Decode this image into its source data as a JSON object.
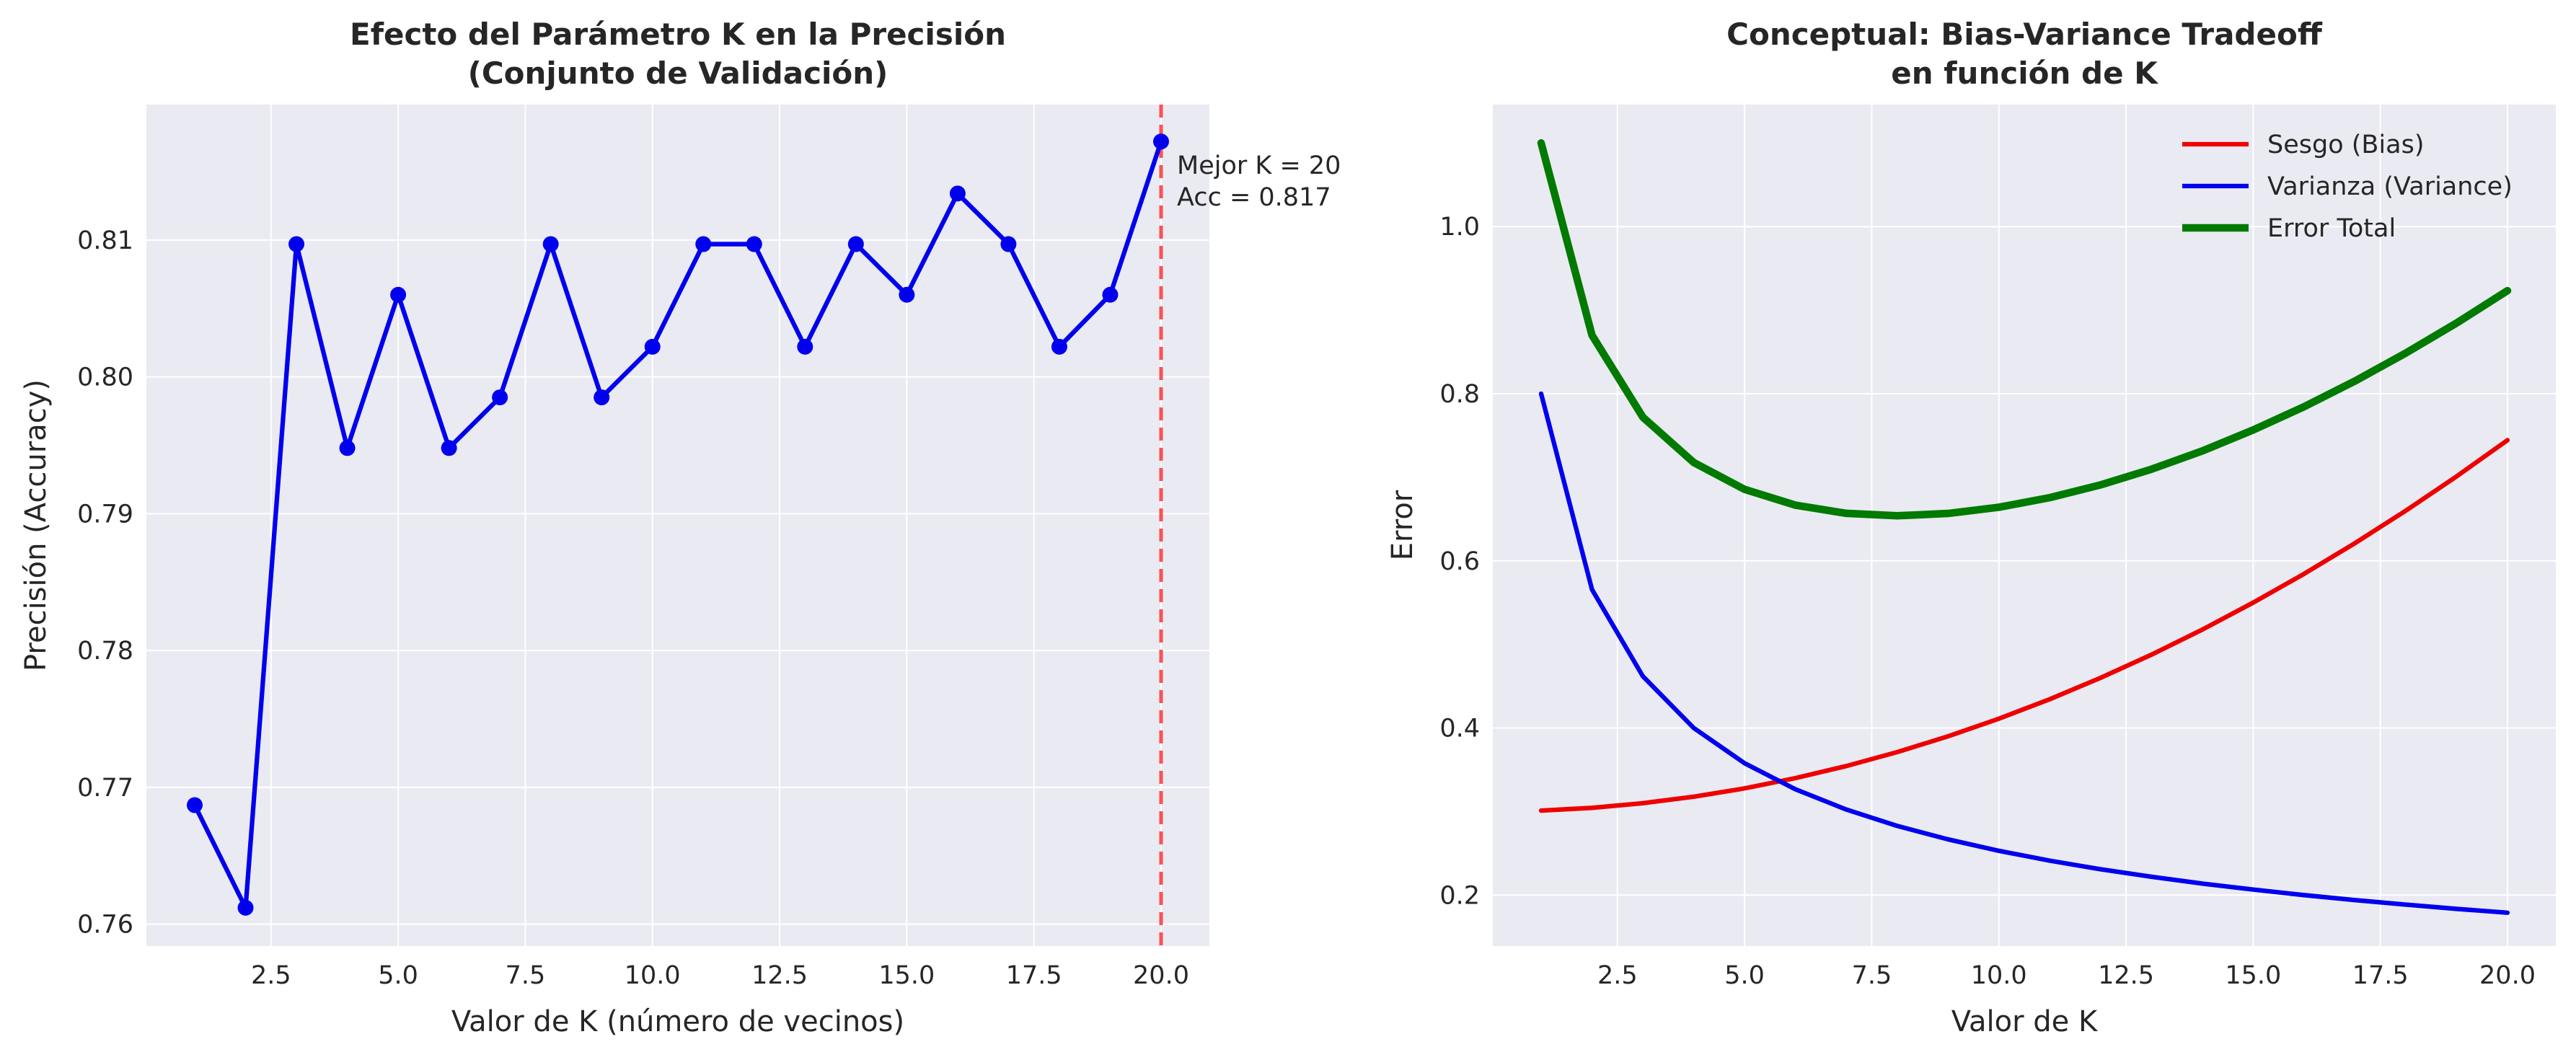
{
  "chart_data": [
    {
      "type": "line",
      "title": "Efecto del Parámetro K en la Precisión\n(Conjunto de Validación)",
      "xlabel": "Valor de K (número de vecinos)",
      "ylabel": "Precisión (Accuracy)",
      "xlim": [
        0.05,
        20.95
      ],
      "ylim": [
        0.7584,
        0.8199
      ],
      "xticks": [
        2.5,
        5.0,
        7.5,
        10.0,
        12.5,
        15.0,
        17.5,
        20.0
      ],
      "xtick_labels": [
        "2.5",
        "5.0",
        "7.5",
        "10.0",
        "12.5",
        "15.0",
        "17.5",
        "20.0"
      ],
      "yticks": [
        0.76,
        0.77,
        0.78,
        0.79,
        0.8,
        0.81
      ],
      "ytick_labels": [
        "0.76",
        "0.77",
        "0.78",
        "0.79",
        "0.80",
        "0.81"
      ],
      "grid": true,
      "x": [
        1,
        2,
        3,
        4,
        5,
        6,
        7,
        8,
        9,
        10,
        11,
        12,
        13,
        14,
        15,
        16,
        17,
        18,
        19,
        20
      ],
      "series": [
        {
          "name": "",
          "color": "#0000ee",
          "markers": true,
          "values": [
            0.7687,
            0.7612,
            0.8097,
            0.7948,
            0.806,
            0.7948,
            0.7985,
            0.8097,
            0.7985,
            0.8022,
            0.8097,
            0.8097,
            0.8022,
            0.8097,
            0.806,
            0.8134,
            0.8097,
            0.8022,
            0.806,
            0.8172
          ]
        }
      ],
      "vline": {
        "x": 20,
        "color": "#ff3333",
        "style": "dashed"
      },
      "annotation": {
        "x": 20,
        "y": 0.8172,
        "lines": [
          "Mejor K = 20",
          "Acc = 0.817"
        ]
      }
    },
    {
      "type": "line",
      "title": "Conceptual: Bias-Variance Tradeoff\nen función de K",
      "xlabel": "Valor de K",
      "ylabel": "Error",
      "xlim": [
        0.05,
        20.95
      ],
      "ylim": [
        0.139,
        1.146
      ],
      "xticks": [
        2.5,
        5.0,
        7.5,
        10.0,
        12.5,
        15.0,
        17.5,
        20.0
      ],
      "xtick_labels": [
        "2.5",
        "5.0",
        "7.5",
        "10.0",
        "12.5",
        "15.0",
        "17.5",
        "20.0"
      ],
      "yticks": [
        0.2,
        0.4,
        0.6,
        0.8,
        1.0
      ],
      "ytick_labels": [
        "0.2",
        "0.4",
        "0.6",
        "0.8",
        "1.0"
      ],
      "grid": true,
      "legend_position": "top-right",
      "x": [
        1,
        2,
        3,
        4,
        5,
        6,
        7,
        8,
        9,
        10,
        11,
        12,
        13,
        14,
        15,
        16,
        17,
        18,
        19,
        20
      ],
      "series": [
        {
          "name": "Sesgo (Bias)",
          "color": "#ee0000",
          "width": 3,
          "values": [
            0.3011,
            0.3044,
            0.31,
            0.3177,
            0.3277,
            0.34,
            0.3544,
            0.3711,
            0.39,
            0.4111,
            0.4344,
            0.46,
            0.4877,
            0.5177,
            0.55,
            0.5844,
            0.6211,
            0.66,
            0.7011,
            0.7444
          ]
        },
        {
          "name": "Varianza (Variance)",
          "color": "#0000ee",
          "width": 3,
          "values": [
            0.8,
            0.5657,
            0.4619,
            0.4,
            0.3578,
            0.3266,
            0.3024,
            0.2828,
            0.2667,
            0.253,
            0.2412,
            0.2309,
            0.2219,
            0.2138,
            0.2066,
            0.2,
            0.194,
            0.1886,
            0.1835,
            0.1789
          ]
        },
        {
          "name": "Error Total",
          "color": "#007a00",
          "width": 5,
          "values": [
            1.1,
            0.87,
            0.7719,
            0.7177,
            0.6855,
            0.6666,
            0.6568,
            0.6539,
            0.6567,
            0.6641,
            0.6756,
            0.6909,
            0.7096,
            0.7315,
            0.7566,
            0.7844,
            0.8151,
            0.8486,
            0.8846,
            0.9233
          ]
        }
      ]
    }
  ]
}
